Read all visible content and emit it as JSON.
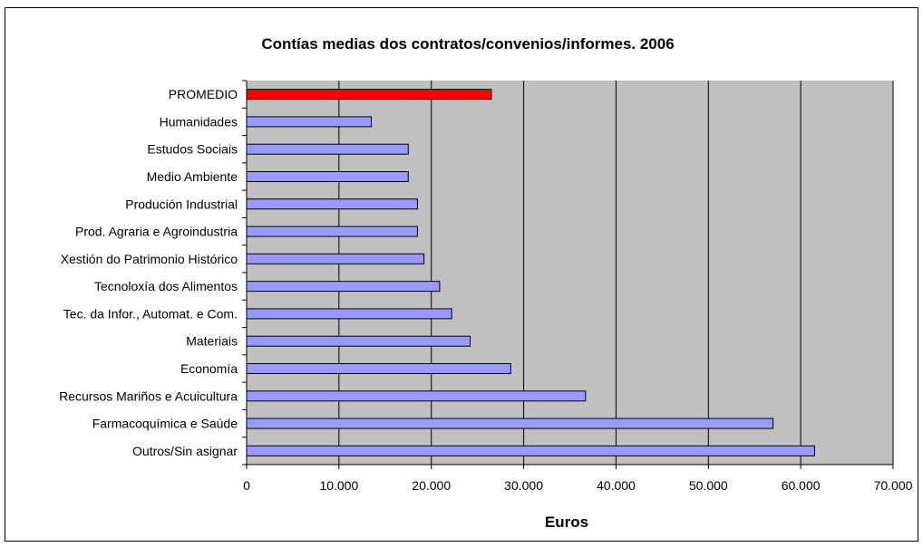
{
  "chart_data": {
    "type": "bar",
    "orientation": "horizontal",
    "title": "Contías medias dos contratos/convenios/informes. 2006",
    "xlabel": "Euros",
    "ylabel": "",
    "categories": [
      "PROMEDIO",
      "Humanidades",
      "Estudos Sociais",
      "Medio Ambiente",
      "Produción Industrial",
      "Prod. Agraria e Agroindustria",
      "Xestión do Patrimonio Histórico",
      "Tecnoloxía dos Alimentos",
      "Tec. da Infor., Automat. e Com.",
      "Materiais",
      "Economía",
      "Recursos Mariños e Acuicultura",
      "Farmacoquímica e Saúde",
      "Outros/Sin asignar"
    ],
    "values": [
      26500,
      13500,
      17500,
      17500,
      18500,
      18500,
      19200,
      20900,
      22200,
      24200,
      28600,
      36700,
      57000,
      61500
    ],
    "xlim": [
      0,
      70000
    ],
    "xticks": [
      0,
      10000,
      20000,
      30000,
      40000,
      50000,
      60000,
      70000
    ],
    "tick_labels": [
      "0",
      "10.000",
      "20.000",
      "30.000",
      "40.000",
      "50.000",
      "60.000",
      "70.000"
    ],
    "grid": "vertical",
    "legend": "none",
    "colors": {
      "bar": "#9999ff",
      "highlight": "#ff0000",
      "plot_background": "#c0c0c0",
      "gridline": "#000000"
    },
    "highlight_category": "PROMEDIO"
  }
}
